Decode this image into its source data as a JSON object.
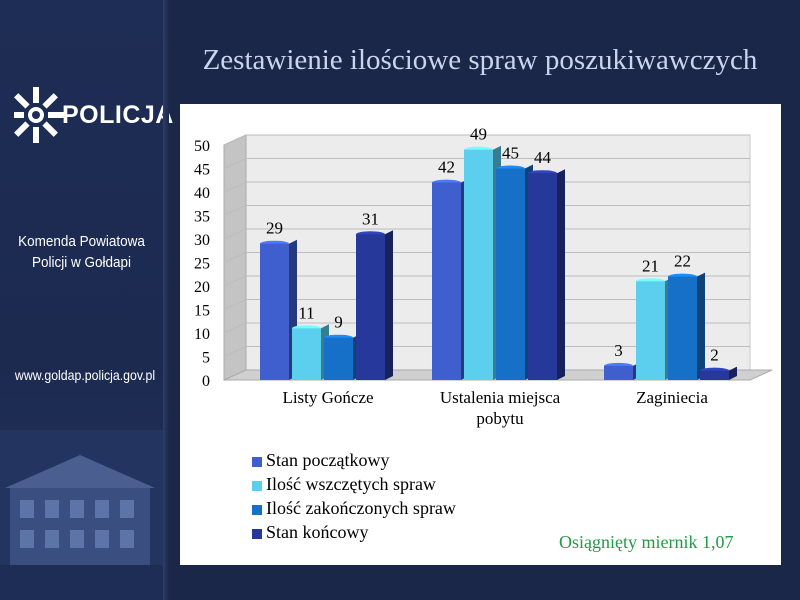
{
  "sidebar": {
    "logo_text": "POLICJA",
    "unit_name_line1": "Komenda Powiatowa",
    "unit_name_line2": "Policji w Gołdapi",
    "website": "www.goldap.policja.gov.pl"
  },
  "title": "Zestawienie ilościowe spraw poszukiwawczych",
  "note": "Osiągnięty miernik 1,07",
  "colors": {
    "background": "#1b2748",
    "title": "#c9d4ee",
    "note": "#1f9b46",
    "series": [
      "#3f5fcf",
      "#5ccfee",
      "#1670c8",
      "#26389a"
    ]
  },
  "chart_data": {
    "type": "bar",
    "title": "",
    "xlabel": "",
    "ylabel": "",
    "ylim": [
      0,
      50
    ],
    "yticks": [
      0,
      5,
      10,
      15,
      20,
      25,
      30,
      35,
      40,
      45,
      50
    ],
    "grid": true,
    "legend_position": "bottom-left",
    "categories": [
      [
        "Listy Gończe"
      ],
      [
        "Ustalenia miejsca",
        "pobytu"
      ],
      [
        "Zaginiecia"
      ]
    ],
    "series": [
      {
        "name": "Stan początkowy",
        "values": [
          29,
          42,
          3
        ]
      },
      {
        "name": "Ilość wszczętych spraw",
        "values": [
          11,
          49,
          21
        ]
      },
      {
        "name": "Ilość zakończonych spraw",
        "values": [
          9,
          45,
          22
        ]
      },
      {
        "name": "Stan końcowy",
        "values": [
          31,
          44,
          2
        ]
      }
    ]
  }
}
